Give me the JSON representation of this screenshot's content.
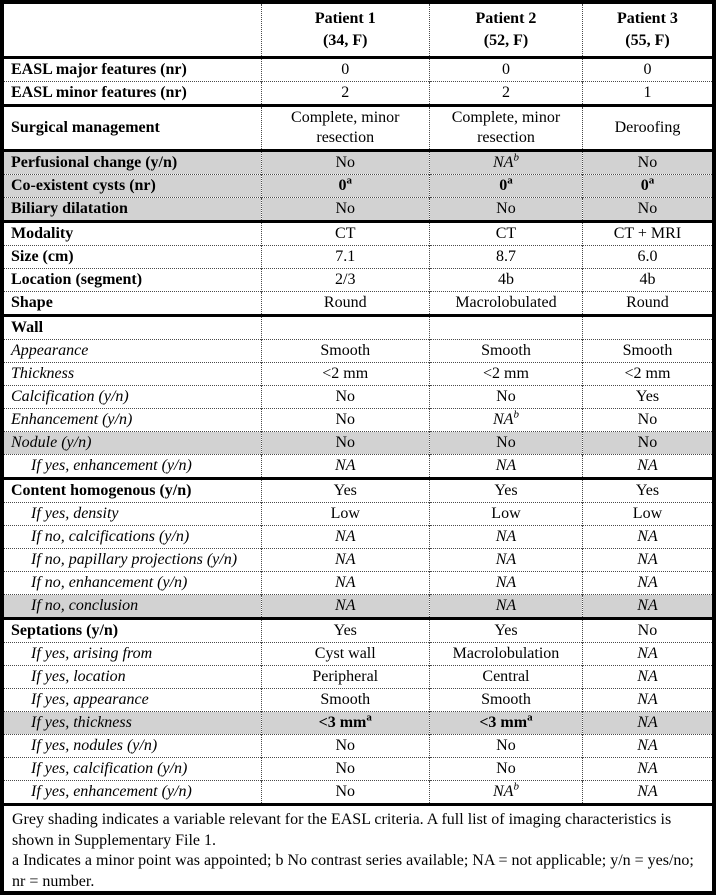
{
  "table": {
    "shading_color": "#d2d2d2",
    "border_color": "#000000",
    "header": {
      "corner": "",
      "columns": [
        {
          "line1": "Patient 1",
          "line2": "(34, F)"
        },
        {
          "line1": "Patient 2",
          "line2": "(52, F)"
        },
        {
          "line1": "Patient 3",
          "line2": "(55, F)"
        }
      ]
    },
    "rows": [
      {
        "label": "EASL major features (nr)",
        "thick_top": true,
        "values": [
          {
            "text": "0"
          },
          {
            "text": "0"
          },
          {
            "text": "0"
          }
        ]
      },
      {
        "label": "EASL minor features (nr)",
        "values": [
          {
            "text": "2"
          },
          {
            "text": "2"
          },
          {
            "text": "1"
          }
        ]
      },
      {
        "label": "Surgical management",
        "thick_top": true,
        "values": [
          {
            "text": "Complete, minor",
            "line2": "resection"
          },
          {
            "text": "Complete, minor",
            "line2": "resection"
          },
          {
            "text": "Deroofing"
          }
        ]
      },
      {
        "label": "Perfusional change (y/n)",
        "thick_top": true,
        "shaded": true,
        "values": [
          {
            "text": "No"
          },
          {
            "text": "NA",
            "sup": "b",
            "italic": true
          },
          {
            "text": "No"
          }
        ]
      },
      {
        "label": "Co-existent cysts (nr)",
        "shaded": true,
        "values": [
          {
            "text": "0",
            "sup": "a",
            "bold": true
          },
          {
            "text": "0",
            "sup": "a",
            "bold": true
          },
          {
            "text": "0",
            "sup": "a",
            "bold": true
          }
        ]
      },
      {
        "label": "Biliary dilatation",
        "shaded": true,
        "values": [
          {
            "text": "No"
          },
          {
            "text": "No"
          },
          {
            "text": "No"
          }
        ]
      },
      {
        "label": "Modality",
        "thick_top": true,
        "values": [
          {
            "text": "CT"
          },
          {
            "text": "CT"
          },
          {
            "text": "CT + MRI"
          }
        ]
      },
      {
        "label": "Size (cm)",
        "values": [
          {
            "text": "7.1"
          },
          {
            "text": "8.7"
          },
          {
            "text": "6.0"
          }
        ]
      },
      {
        "label": "Location (segment)",
        "values": [
          {
            "text": "2/3"
          },
          {
            "text": "4b"
          },
          {
            "text": "4b"
          }
        ]
      },
      {
        "label": "Shape",
        "values": [
          {
            "text": "Round"
          },
          {
            "text": "Macrolobulated"
          },
          {
            "text": "Round"
          }
        ]
      },
      {
        "label": "Wall",
        "thick_top": true,
        "values": [
          {
            "text": ""
          },
          {
            "text": ""
          },
          {
            "text": ""
          }
        ]
      },
      {
        "label": "Appearance",
        "sub": true,
        "values": [
          {
            "text": "Smooth"
          },
          {
            "text": "Smooth"
          },
          {
            "text": "Smooth"
          }
        ]
      },
      {
        "label": "Thickness",
        "sub": true,
        "values": [
          {
            "text": "<2 mm"
          },
          {
            "text": "<2 mm"
          },
          {
            "text": "<2 mm"
          }
        ]
      },
      {
        "label": "Calcification (y/n)",
        "sub": true,
        "values": [
          {
            "text": "No"
          },
          {
            "text": "No"
          },
          {
            "text": "Yes"
          }
        ]
      },
      {
        "label": "Enhancement (y/n)",
        "sub": true,
        "values": [
          {
            "text": "No"
          },
          {
            "text": "NA",
            "sup": "b",
            "italic": true
          },
          {
            "text": "No"
          }
        ]
      },
      {
        "label": "Nodule (y/n)",
        "sub": true,
        "shaded": true,
        "values": [
          {
            "text": "No"
          },
          {
            "text": "No"
          },
          {
            "text": "No"
          }
        ]
      },
      {
        "label": "If yes, enhancement (y/n)",
        "sub": true,
        "indent": true,
        "values": [
          {
            "text": "NA",
            "italic": true
          },
          {
            "text": "NA",
            "italic": true
          },
          {
            "text": "NA",
            "italic": true
          }
        ]
      },
      {
        "label": "Content homogenous (y/n)",
        "thick_top": true,
        "values": [
          {
            "text": "Yes"
          },
          {
            "text": "Yes"
          },
          {
            "text": "Yes"
          }
        ]
      },
      {
        "label": "If yes, density",
        "sub": true,
        "indent": true,
        "values": [
          {
            "text": "Low"
          },
          {
            "text": "Low"
          },
          {
            "text": "Low"
          }
        ]
      },
      {
        "label": "If no, calcifications (y/n)",
        "sub": true,
        "indent": true,
        "values": [
          {
            "text": "NA",
            "italic": true
          },
          {
            "text": "NA",
            "italic": true
          },
          {
            "text": "NA",
            "italic": true
          }
        ]
      },
      {
        "label": "If no, papillary projections (y/n)",
        "sub": true,
        "indent": true,
        "values": [
          {
            "text": "NA",
            "italic": true
          },
          {
            "text": "NA",
            "italic": true
          },
          {
            "text": "NA",
            "italic": true
          }
        ]
      },
      {
        "label": "If no, enhancement (y/n)",
        "sub": true,
        "indent": true,
        "values": [
          {
            "text": "NA",
            "italic": true
          },
          {
            "text": "NA",
            "italic": true
          },
          {
            "text": "NA",
            "italic": true
          }
        ]
      },
      {
        "label": "If no, conclusion",
        "sub": true,
        "indent": true,
        "shaded": true,
        "values": [
          {
            "text": "NA",
            "italic": true
          },
          {
            "text": "NA",
            "italic": true
          },
          {
            "text": "NA",
            "italic": true
          }
        ]
      },
      {
        "label": "Septations (y/n)",
        "thick_top": true,
        "values": [
          {
            "text": "Yes"
          },
          {
            "text": "Yes"
          },
          {
            "text": "No"
          }
        ]
      },
      {
        "label": "If yes, arising from",
        "sub": true,
        "indent": true,
        "values": [
          {
            "text": "Cyst wall"
          },
          {
            "text": "Macrolobulation"
          },
          {
            "text": "NA",
            "italic": true
          }
        ]
      },
      {
        "label": "If yes, location",
        "sub": true,
        "indent": true,
        "values": [
          {
            "text": "Peripheral"
          },
          {
            "text": "Central"
          },
          {
            "text": "NA",
            "italic": true
          }
        ]
      },
      {
        "label": "If yes, appearance",
        "sub": true,
        "indent": true,
        "values": [
          {
            "text": "Smooth"
          },
          {
            "text": "Smooth"
          },
          {
            "text": "NA",
            "italic": true
          }
        ]
      },
      {
        "label": "If yes, thickness",
        "sub": true,
        "indent": true,
        "shaded": true,
        "values": [
          {
            "text": "<3 mm",
            "sup": "a",
            "bold": true
          },
          {
            "text": "<3 mm",
            "sup": "a",
            "bold": true
          },
          {
            "text": "NA",
            "italic": true
          }
        ]
      },
      {
        "label": "If yes, nodules (y/n)",
        "sub": true,
        "indent": true,
        "values": [
          {
            "text": "No"
          },
          {
            "text": "No"
          },
          {
            "text": "NA",
            "italic": true
          }
        ]
      },
      {
        "label": "If yes, calcification (y/n)",
        "sub": true,
        "indent": true,
        "values": [
          {
            "text": "No"
          },
          {
            "text": "No"
          },
          {
            "text": "NA",
            "italic": true
          }
        ]
      },
      {
        "label": "If yes, enhancement (y/n)",
        "sub": true,
        "indent": true,
        "values": [
          {
            "text": "No"
          },
          {
            "text": "NA",
            "sup": "b",
            "italic": true
          },
          {
            "text": "NA",
            "italic": true
          }
        ]
      }
    ],
    "footer": {
      "line1": "Grey shading indicates a variable relevant for the EASL criteria. A full list of imaging characteristics is shown in Supplementary File 1.",
      "line2": "a Indicates a minor point was appointed; b No contrast series available; NA = not applicable; y/n = yes/no; nr = number."
    }
  }
}
